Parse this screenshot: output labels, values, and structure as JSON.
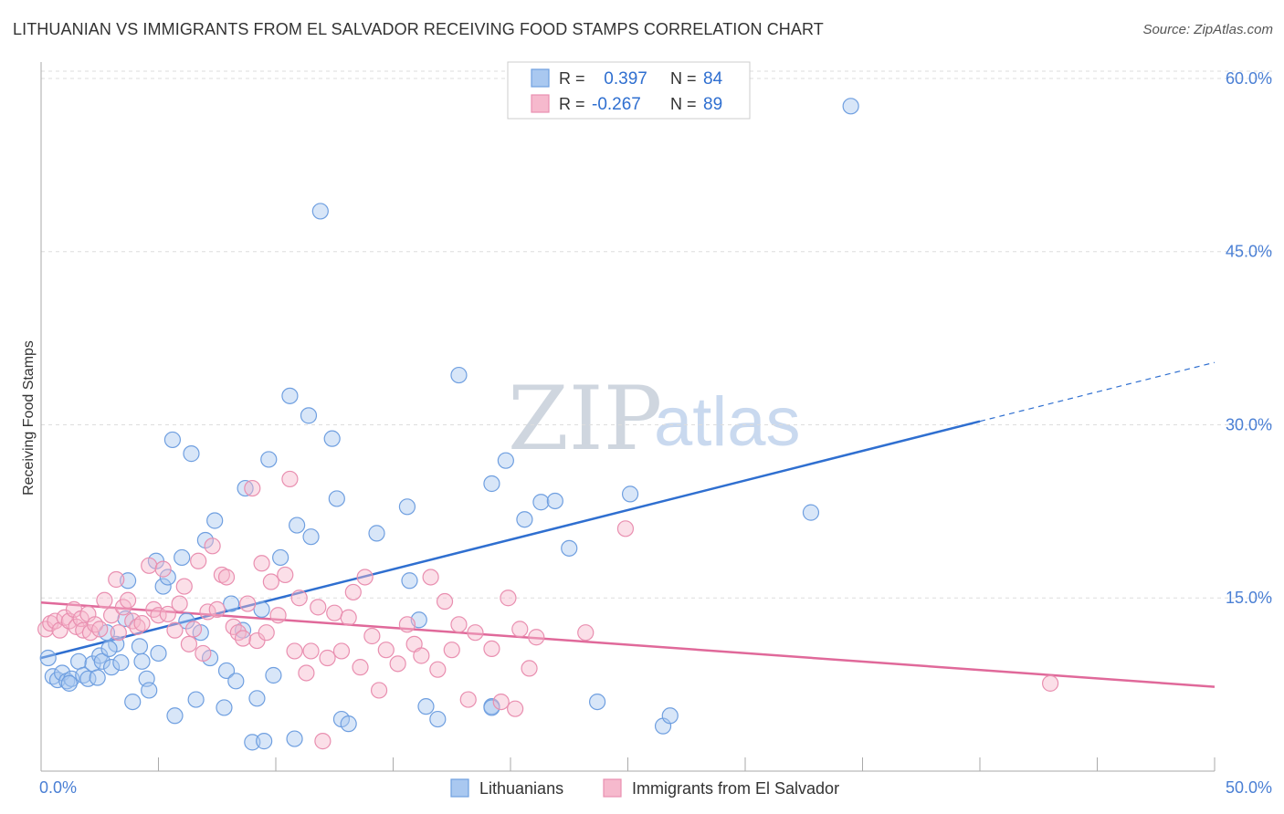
{
  "title": "LITHUANIAN VS IMMIGRANTS FROM EL SALVADOR RECEIVING FOOD STAMPS CORRELATION CHART",
  "source": "Source: ZipAtlas.com",
  "watermark": {
    "zip": "ZIP",
    "atlas": "atlas"
  },
  "colors": {
    "blue": "#2f6fd0",
    "blue_fill": "#a9c8f0",
    "pink": "#e0699a",
    "pink_fill": "#f6b9cd",
    "grid": "#dddddd",
    "axis": "#aaaaaa"
  },
  "legend": {
    "rows": [
      {
        "r_label": "R =",
        "r_value": " 0.397",
        "n_label": "N =",
        "n_value": "84"
      },
      {
        "r_label": "R =",
        "r_value": "-0.267",
        "n_label": "N =",
        "n_value": "89"
      }
    ]
  },
  "chart_data": {
    "type": "scatter",
    "title": "LITHUANIAN VS IMMIGRANTS FROM EL SALVADOR RECEIVING FOOD STAMPS CORRELATION CHART",
    "ylabel": "Receiving Food Stamps",
    "xlabel": "",
    "xlim": [
      0,
      50
    ],
    "ylim": [
      0,
      63
    ],
    "x_tick_labels": [
      "0.0%",
      "50.0%"
    ],
    "y_ticks": [
      15,
      30,
      45,
      60
    ],
    "y_tick_labels": [
      "15.0%",
      "30.0%",
      "45.0%",
      "60.0%"
    ],
    "series": [
      {
        "name": "Lithuanians",
        "color": "blue",
        "r": 0.397,
        "n": 84,
        "trend": {
          "x_start": 0,
          "y_start": 9.8,
          "x_solid_end": 40,
          "y_solid_end": 30.3,
          "x_end": 50,
          "y_end": 35.4
        },
        "points": [
          [
            0.3,
            9.8
          ],
          [
            0.5,
            8.2
          ],
          [
            0.7,
            7.9
          ],
          [
            0.9,
            8.5
          ],
          [
            1.1,
            7.8
          ],
          [
            1.3,
            8.0
          ],
          [
            1.6,
            9.5
          ],
          [
            1.8,
            8.3
          ],
          [
            2.0,
            8.0
          ],
          [
            2.2,
            9.3
          ],
          [
            2.4,
            8.1
          ],
          [
            2.5,
            10.0
          ],
          [
            2.6,
            9.5
          ],
          [
            2.8,
            12.0
          ],
          [
            3.0,
            9.0
          ],
          [
            3.2,
            11.0
          ],
          [
            3.4,
            9.4
          ],
          [
            3.6,
            13.2
          ],
          [
            3.7,
            16.5
          ],
          [
            3.9,
            6.0
          ],
          [
            4.2,
            10.8
          ],
          [
            4.3,
            9.5
          ],
          [
            4.5,
            8.0
          ],
          [
            4.6,
            7.0
          ],
          [
            4.9,
            18.2
          ],
          [
            5.0,
            10.2
          ],
          [
            5.2,
            16.0
          ],
          [
            5.4,
            16.8
          ],
          [
            5.6,
            28.7
          ],
          [
            5.7,
            4.8
          ],
          [
            6.0,
            18.5
          ],
          [
            6.2,
            13.0
          ],
          [
            6.4,
            27.5
          ],
          [
            6.6,
            6.2
          ],
          [
            6.8,
            12.0
          ],
          [
            7.0,
            20.0
          ],
          [
            7.2,
            9.8
          ],
          [
            7.4,
            21.7
          ],
          [
            7.8,
            5.5
          ],
          [
            7.9,
            8.7
          ],
          [
            8.1,
            14.5
          ],
          [
            8.3,
            7.8
          ],
          [
            8.6,
            12.2
          ],
          [
            8.7,
            24.5
          ],
          [
            9.0,
            2.5
          ],
          [
            9.2,
            6.3
          ],
          [
            9.4,
            14.0
          ],
          [
            9.5,
            2.6
          ],
          [
            9.7,
            27.0
          ],
          [
            9.9,
            8.3
          ],
          [
            10.2,
            18.5
          ],
          [
            10.6,
            32.5
          ],
          [
            10.8,
            2.8
          ],
          [
            10.9,
            21.3
          ],
          [
            11.4,
            30.8
          ],
          [
            11.5,
            20.3
          ],
          [
            11.9,
            48.5
          ],
          [
            12.4,
            28.8
          ],
          [
            12.6,
            23.6
          ],
          [
            12.8,
            4.5
          ],
          [
            13.1,
            4.1
          ],
          [
            14.3,
            20.6
          ],
          [
            15.6,
            22.9
          ],
          [
            15.7,
            16.5
          ],
          [
            16.1,
            13.1
          ],
          [
            16.4,
            5.6
          ],
          [
            16.9,
            4.5
          ],
          [
            17.8,
            34.3
          ],
          [
            19.2,
            24.9
          ],
          [
            19.2,
            5.6
          ],
          [
            19.2,
            5.5
          ],
          [
            19.8,
            26.9
          ],
          [
            20.6,
            21.8
          ],
          [
            21.3,
            23.3
          ],
          [
            21.9,
            23.4
          ],
          [
            22.5,
            19.3
          ],
          [
            23.7,
            6.0
          ],
          [
            25.1,
            24.0
          ],
          [
            26.5,
            3.9
          ],
          [
            26.8,
            4.8
          ],
          [
            32.8,
            22.4
          ],
          [
            34.5,
            57.6
          ],
          [
            1.2,
            7.6
          ],
          [
            2.9,
            10.6
          ]
        ]
      },
      {
        "name": "Immigrants from El Salvador",
        "color": "pink",
        "r": -0.267,
        "n": 89,
        "trend": {
          "x_start": 0,
          "y_start": 14.6,
          "x_end": 50,
          "y_end": 7.3
        },
        "points": [
          [
            0.2,
            12.3
          ],
          [
            0.4,
            12.8
          ],
          [
            0.6,
            13.0
          ],
          [
            0.8,
            12.2
          ],
          [
            1.0,
            13.3
          ],
          [
            1.2,
            13.0
          ],
          [
            1.4,
            14.0
          ],
          [
            1.5,
            12.5
          ],
          [
            1.7,
            13.2
          ],
          [
            1.8,
            12.2
          ],
          [
            2.0,
            13.6
          ],
          [
            2.1,
            12.0
          ],
          [
            2.3,
            12.7
          ],
          [
            2.5,
            12.3
          ],
          [
            2.7,
            14.8
          ],
          [
            3.0,
            13.5
          ],
          [
            3.2,
            16.6
          ],
          [
            3.3,
            12.0
          ],
          [
            3.5,
            14.2
          ],
          [
            3.7,
            14.8
          ],
          [
            3.9,
            13.0
          ],
          [
            4.1,
            12.5
          ],
          [
            4.3,
            12.8
          ],
          [
            4.6,
            17.8
          ],
          [
            4.8,
            14.0
          ],
          [
            5.0,
            13.5
          ],
          [
            5.2,
            17.5
          ],
          [
            5.4,
            13.6
          ],
          [
            5.7,
            12.2
          ],
          [
            5.9,
            14.5
          ],
          [
            6.1,
            16.0
          ],
          [
            6.3,
            11.0
          ],
          [
            6.5,
            12.3
          ],
          [
            6.7,
            18.2
          ],
          [
            6.9,
            10.2
          ],
          [
            7.1,
            13.8
          ],
          [
            7.3,
            19.5
          ],
          [
            7.5,
            14.0
          ],
          [
            7.7,
            17.0
          ],
          [
            7.9,
            16.8
          ],
          [
            8.2,
            12.5
          ],
          [
            8.4,
            12.0
          ],
          [
            8.6,
            11.5
          ],
          [
            8.8,
            14.5
          ],
          [
            9.0,
            24.5
          ],
          [
            9.2,
            11.3
          ],
          [
            9.4,
            18.0
          ],
          [
            9.6,
            12.0
          ],
          [
            9.8,
            16.4
          ],
          [
            10.1,
            13.5
          ],
          [
            10.4,
            17.0
          ],
          [
            10.6,
            25.3
          ],
          [
            10.8,
            10.4
          ],
          [
            11.0,
            15.0
          ],
          [
            11.3,
            8.5
          ],
          [
            11.5,
            10.4
          ],
          [
            11.8,
            14.2
          ],
          [
            12.0,
            2.6
          ],
          [
            12.2,
            9.8
          ],
          [
            12.5,
            13.7
          ],
          [
            12.8,
            10.4
          ],
          [
            13.1,
            13.3
          ],
          [
            13.3,
            15.5
          ],
          [
            13.6,
            9.0
          ],
          [
            13.8,
            16.8
          ],
          [
            14.1,
            11.7
          ],
          [
            14.4,
            7.0
          ],
          [
            14.7,
            10.5
          ],
          [
            15.2,
            9.3
          ],
          [
            15.6,
            12.7
          ],
          [
            15.9,
            11.0
          ],
          [
            16.2,
            10.0
          ],
          [
            16.6,
            16.8
          ],
          [
            16.9,
            8.8
          ],
          [
            17.2,
            14.7
          ],
          [
            17.5,
            10.5
          ],
          [
            17.8,
            12.7
          ],
          [
            18.2,
            6.2
          ],
          [
            18.5,
            12.0
          ],
          [
            19.2,
            10.6
          ],
          [
            19.6,
            6.0
          ],
          [
            19.9,
            15.0
          ],
          [
            20.2,
            5.4
          ],
          [
            20.4,
            12.3
          ],
          [
            20.8,
            8.9
          ],
          [
            21.1,
            11.6
          ],
          [
            23.2,
            12.0
          ],
          [
            24.9,
            21.0
          ],
          [
            43.0,
            7.6
          ]
        ]
      }
    ]
  },
  "bottom_legend": [
    "Lithuanians",
    "Immigrants from El Salvador"
  ]
}
